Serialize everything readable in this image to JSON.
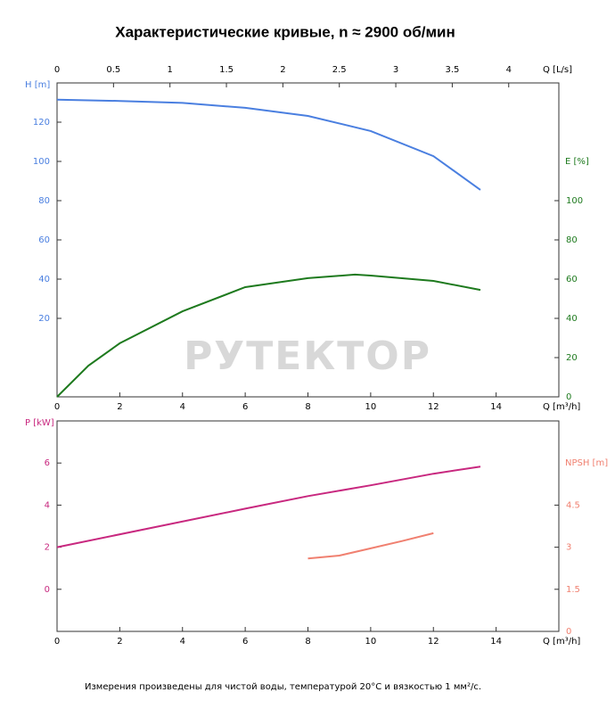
{
  "title": "Характеристические кривые, n ≈ 2900 об/мин",
  "note": "Измерения произведены для чистой воды, температурой 20°C и вязкостью 1 мм²/с.",
  "watermark": "РУТЕКТОР",
  "chart_data": [
    {
      "type": "line",
      "xlabel": "Q [m³/h]",
      "xlim": [
        0,
        16
      ],
      "xticks": [
        0,
        2,
        4,
        6,
        8,
        10,
        12,
        14
      ],
      "x2label": "Q [L/s]",
      "x2lim": [
        0,
        4.444
      ],
      "x2ticks": [
        0,
        0.5,
        1,
        1.5,
        2,
        2.5,
        3,
        3.5,
        4
      ],
      "ylabel": "H [m]",
      "ylabel_color": "#4a7fe0",
      "ylim": [
        -20,
        140
      ],
      "yticks": [
        20,
        40,
        60,
        80,
        100,
        120
      ],
      "y2label": "E [%]",
      "y2label_color": "#1e7a1e",
      "y2lim": [
        0,
        160
      ],
      "y2ticks": [
        0,
        20,
        40,
        60,
        80,
        100
      ],
      "series": [
        {
          "color": "#4a7fe0",
          "axis": "y",
          "x": [
            0,
            2,
            4,
            6,
            8,
            10,
            12,
            13.5
          ],
          "values": [
            131.5,
            130.8,
            129.8,
            127.3,
            123.2,
            115.5,
            102.7,
            85.5
          ]
        },
        {
          "color": "#1e7a1e",
          "axis": "y2",
          "x": [
            0,
            1,
            2,
            4,
            6,
            8,
            9.5,
            10,
            12,
            13.5
          ],
          "values": [
            0,
            15.9,
            27.3,
            43.6,
            55.9,
            60.5,
            62.3,
            61.8,
            59.1,
            54.5
          ]
        }
      ]
    },
    {
      "type": "line",
      "xlabel": "Q [m³/h]",
      "xlim": [
        0,
        16
      ],
      "xticks": [
        0,
        2,
        4,
        6,
        8,
        10,
        12,
        14
      ],
      "ylabel": "P [kW]",
      "ylabel_color": "#c8287f",
      "ylim": [
        -2,
        8
      ],
      "yticks": [
        0,
        2,
        4,
        6
      ],
      "y2label": "NPSH [m]",
      "y2label_color": "#f08070",
      "y2lim": [
        0,
        7.5
      ],
      "y2ticks": [
        0,
        1.5,
        3,
        4.5
      ],
      "series": [
        {
          "color": "#c8287f",
          "axis": "y",
          "x": [
            0,
            6,
            8,
            10,
            12,
            13.5
          ],
          "values": [
            2,
            3.83,
            4.43,
            4.94,
            5.49,
            5.83
          ]
        },
        {
          "color": "#f08070",
          "axis": "y2",
          "x": [
            8,
            9,
            10,
            11,
            12
          ],
          "values": [
            2.6,
            2.7,
            2.96,
            3.22,
            3.5
          ]
        }
      ]
    }
  ]
}
